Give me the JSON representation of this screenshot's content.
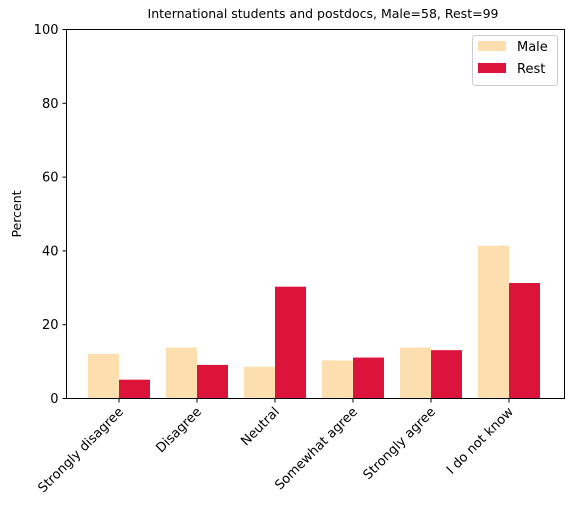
{
  "chart_data": {
    "type": "bar",
    "title": "International students and postdocs, Male=58, Rest=99",
    "xlabel": "",
    "ylabel": "Percent",
    "ylim": [
      0,
      100
    ],
    "yticks": [
      0,
      20,
      40,
      60,
      80,
      100
    ],
    "categories": [
      "Strongly disagree",
      "Disagree",
      "Neutral",
      "Somewhat agree",
      "Strongly agree",
      "I do not know"
    ],
    "series": [
      {
        "name": "Male",
        "color": "#FDDEAE",
        "values": [
          12.1,
          13.8,
          8.6,
          10.3,
          13.8,
          41.4
        ]
      },
      {
        "name": "Rest",
        "color": "#DC143C",
        "values": [
          5.1,
          9.1,
          30.3,
          11.1,
          13.1,
          31.3
        ]
      }
    ],
    "legend_position": "top-right",
    "grid": false
  }
}
